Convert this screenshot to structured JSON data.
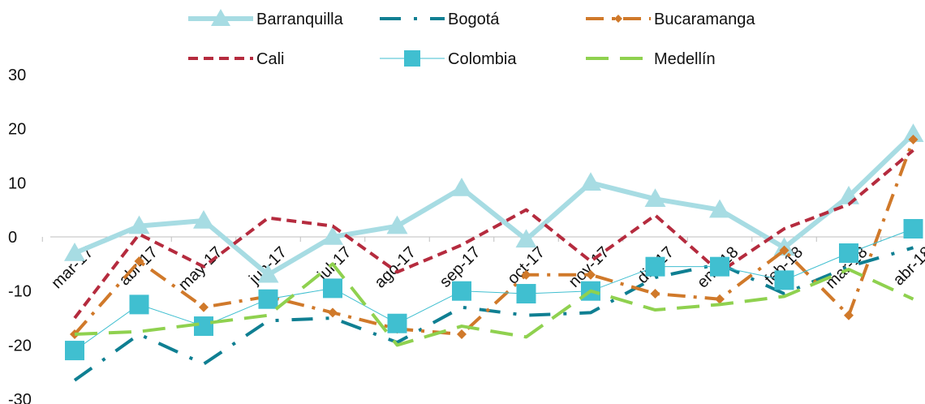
{
  "chart_data": {
    "type": "line",
    "title": "",
    "xlabel": "",
    "ylabel": "",
    "ylim": [
      -30,
      30
    ],
    "yticks": [
      -30,
      -20,
      -10,
      0,
      10,
      20,
      30
    ],
    "categories": [
      "mar-17",
      "abr-17",
      "may-17",
      "jun-17",
      "jul-17",
      "ago-17",
      "sep-17",
      "oct-17",
      "nov-17",
      "dic-17",
      "ene-18",
      "feb-18",
      "mar-18",
      "abr-18"
    ],
    "legend_position": "top",
    "grid": false,
    "series": [
      {
        "name": "Barranquilla",
        "color": "#a7dce3",
        "style": "solid-thick-triangle",
        "values": [
          -3,
          2,
          3,
          -7,
          0,
          2,
          9,
          -0.5,
          10,
          7,
          5,
          -2,
          7.5,
          19
        ]
      },
      {
        "name": "Bogotá",
        "color": "#0f7f92",
        "style": "dash-dot",
        "values": [
          -26.5,
          -18,
          -23.5,
          -15.5,
          -15,
          -19.5,
          -13,
          -14.5,
          -14,
          -7.5,
          -5,
          -10.5,
          -5.5,
          -2
        ]
      },
      {
        "name": "Bucaramanga",
        "color": "#d0792a",
        "style": "dash-dot-diamond",
        "values": [
          -18,
          -4.5,
          -13,
          -11,
          -14,
          -17,
          -18,
          -7,
          -7,
          -10.5,
          -11.5,
          -2.5,
          -14.5,
          18
        ]
      },
      {
        "name": "Cali",
        "color": "#b52b3e",
        "style": "dashed",
        "values": [
          -15,
          0.5,
          -5.5,
          3.5,
          2,
          -6.5,
          -1.5,
          5,
          -4.5,
          4,
          -6.5,
          1.5,
          6,
          16
        ]
      },
      {
        "name": "Colombia",
        "color": "#40bfd0",
        "style": "thin-square",
        "values": [
          -21,
          -12.5,
          -16.5,
          -11.5,
          -9.5,
          -16,
          -10,
          -10.5,
          -10,
          -5.5,
          -5.5,
          -8,
          -3,
          1.5
        ]
      },
      {
        "name": "Medellín",
        "color": "#8fd14f",
        "style": "long-dash",
        "values": [
          -18,
          -17.5,
          -16,
          -14.5,
          -5,
          -20,
          -16.5,
          -18.5,
          -10,
          -13.5,
          -12.5,
          -11,
          -6,
          -11.5
        ]
      }
    ]
  }
}
